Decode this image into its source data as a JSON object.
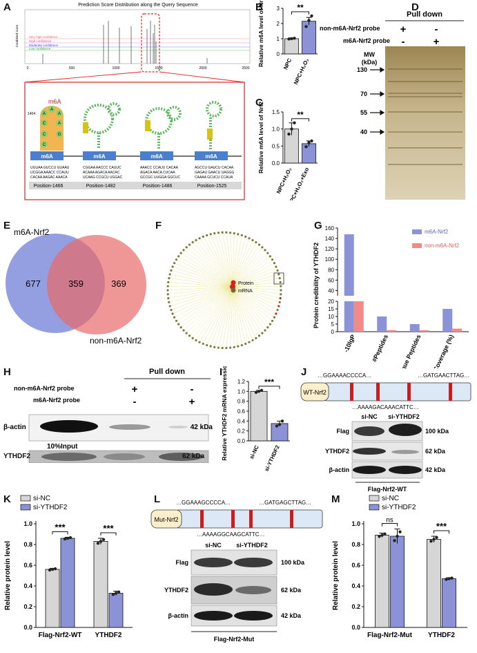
{
  "panel_letters": [
    "A",
    "B",
    "C",
    "D",
    "E",
    "F",
    "G",
    "H",
    "I",
    "J",
    "K",
    "L",
    "M"
  ],
  "colors": {
    "purple": "#8b93d6",
    "grey": "#d6d6d6",
    "pink": "#f28b87",
    "venn_blue": "#6f7fd6",
    "venn_red": "#e86a6a",
    "orange": "#f0a830",
    "green": "#8fd06a",
    "red": "#e03030",
    "yellow": "#e6d96a",
    "wt_box": "#fbefcc",
    "seq_box": "#dce8f6"
  },
  "panelA": {
    "title": "Prediction Score Distribution along the Query Sequence",
    "ylabel": "Combined score",
    "xticks": [
      "0",
      "500",
      "1000",
      "1500",
      "2000",
      "2500"
    ],
    "legend": [
      "Very high confidence",
      "High confidence",
      "Moderate confidence",
      "Low confidence"
    ],
    "m6a_label": "m6A",
    "pos1404": "1404",
    "stem_bases": [
      "A",
      "A",
      "A",
      "C",
      "A",
      "C",
      "G",
      "C"
    ],
    "box_label": "m6A",
    "sites": [
      {
        "seq": [
          "UGUAA GUCCU GUAAU",
          "UCGGA AAACC CCAUU",
          "CACAA AAGAC AAACA"
        ],
        "pos": "Position-1466"
      },
      {
        "seq": [
          "CGGAA AACCC CAUUC",
          "ACAAA AGACA AACAC",
          "UCAAG CCGCU UGGAC"
        ],
        "pos": "Position-1482"
      },
      {
        "seq": [
          "AAACC CCAUU CACAA",
          "AGACA AACA CUCAA",
          "GCCGC UUGGA GGCUC"
        ],
        "pos": "Position-1486"
      },
      {
        "seq": [
          "AGCCU GAUCU CACAA",
          "GAGAU GAACU UAGGG",
          "CAAAA GCUCU CCAUA"
        ],
        "pos": "Position-1525"
      }
    ]
  },
  "chart_data": [
    {
      "id": "B",
      "type": "bar",
      "categories": [
        "NPC",
        "NPC+H2O2"
      ],
      "values": [
        1.0,
        2.15
      ],
      "points": [
        [
          0.98,
          1.0,
          1.03
        ],
        [
          1.8,
          2.2,
          2.5
        ]
      ],
      "errors": [
        0.05,
        0.25
      ],
      "ylabel": "Relative m6A level of Nrf2",
      "ylim": [
        0,
        3
      ],
      "yticks": [
        "0",
        "1",
        "2",
        "3"
      ],
      "significance": "**"
    },
    {
      "id": "C",
      "type": "bar",
      "categories": [
        "NPC+H2O2",
        "NPC+H2O2+Exo"
      ],
      "values": [
        1.0,
        0.57
      ],
      "points": [
        [
          0.85,
          1.0,
          1.18
        ],
        [
          0.48,
          0.6,
          0.65
        ]
      ],
      "errors": [
        0.18,
        0.08
      ],
      "ylabel": "Relative m6A level of Nrf2",
      "ylim": [
        0,
        1.5
      ],
      "yticks": [
        "0.0",
        "0.5",
        "1.0",
        "1.5"
      ],
      "significance": "**"
    },
    {
      "id": "G",
      "type": "bar",
      "title": "",
      "ylabel": "Protein credibility of YTHDF2",
      "categories": [
        "-10lgP",
        "#Peptides",
        "#Unique Peptides",
        "Coverage (%)"
      ],
      "series": [
        {
          "name": "m6A-Nrf2",
          "values": [
            148,
            10,
            5,
            15
          ]
        },
        {
          "name": "non-m6A-Nrf2",
          "values": [
            25,
            1,
            1,
            2
          ]
        }
      ],
      "yticks_low": [
        "0",
        "5",
        "10",
        "15",
        "20"
      ],
      "yticks_high": [
        "40",
        "60",
        "80",
        "100",
        "120",
        "140",
        "160"
      ],
      "axis_break": [
        20,
        30
      ]
    },
    {
      "id": "I",
      "type": "bar",
      "categories": [
        "si-NC",
        "si-YTHDF2"
      ],
      "values": [
        1.0,
        0.35
      ],
      "points": [
        [
          0.98,
          1.0,
          1.02
        ],
        [
          0.3,
          0.33,
          0.4
        ]
      ],
      "errors": [
        0.02,
        0.05
      ],
      "ylabel": "Relative YTHDF2 mRNA expression",
      "ylim": [
        0,
        1.2
      ],
      "yticks": [
        "0.0",
        "0.2",
        "0.4",
        "0.6",
        "0.8",
        "1.0",
        "1.2"
      ],
      "significance": "***"
    },
    {
      "id": "K",
      "type": "bar",
      "categories": [
        "Flag-Nrf2-WT",
        "YTHDF2"
      ],
      "series": [
        {
          "name": "si-NC",
          "values": [
            0.56,
            0.83
          ]
        },
        {
          "name": "si-YTHDF2",
          "values": [
            0.86,
            0.33
          ]
        }
      ],
      "errors": [
        [
          0.01,
          0.03
        ],
        [
          0.01,
          0.02
        ]
      ],
      "ylabel": "Relative protein level",
      "ylim": [
        0,
        1.0
      ],
      "yticks": [
        "0.0",
        "0.2",
        "0.4",
        "0.6",
        "0.8",
        "1.0"
      ],
      "significance": [
        "***",
        "***"
      ]
    },
    {
      "id": "M",
      "type": "bar",
      "categories": [
        "Flag-Nrf2-Mut",
        "YTHDF2"
      ],
      "series": [
        {
          "name": "si-NC",
          "values": [
            0.89,
            0.85
          ]
        },
        {
          "name": "si-YTHDF2",
          "values": [
            0.88,
            0.47
          ]
        }
      ],
      "errors": [
        [
          0.02,
          0.03
        ],
        [
          0.07,
          0.01
        ]
      ],
      "ylabel": "Relative protein level",
      "ylim": [
        0,
        1.0
      ],
      "yticks": [
        "0.0",
        "0.2",
        "0.4",
        "0.6",
        "0.8",
        "1.0"
      ],
      "significance": [
        "ns",
        "***"
      ]
    }
  ],
  "panelD": {
    "title": "Pull down",
    "probe1": "non-m6A-Nrf2 probe",
    "probe2": "m6A-Nrf2 probe",
    "lane1": [
      "+",
      "-"
    ],
    "lane2": [
      "-",
      "+"
    ],
    "mw_label": "MW",
    "mw_unit": "(kDa)",
    "markers": [
      "130",
      "70",
      "55",
      "40"
    ]
  },
  "panelE": {
    "left_label": "m6A-Nrf2",
    "right_label": "non-m6A-Nrf2",
    "left_only": "677",
    "overlap": "359",
    "right_only": "369"
  },
  "panelF": {
    "legend_protein": "Protein",
    "legend_mrna": "mRNA"
  },
  "panelH": {
    "title": "Pull down",
    "probe1": "non-m6A-Nrf2 probe",
    "probe2": "m6A-Nrf2 probe",
    "signs1": [
      "+",
      "-"
    ],
    "signs2": [
      "-",
      "+"
    ],
    "band1": "β-actin",
    "band2": "YTHDF2",
    "input": "10%Input",
    "kda1": "42 kDa",
    "kda2": "62 kDa"
  },
  "panelJ": {
    "construct": "WT-Nrf2",
    "seq_top1": "…GGAAAACCCCA…",
    "seq_top2": "…GATGAACTTAG…",
    "seq_bottom": "…AAAAGACAAACATTC…",
    "lanes": [
      "si-NC",
      "si-YTHDF2"
    ],
    "bands": [
      "Flag",
      "YTHDF2",
      "β-actin"
    ],
    "kda": [
      "100 kDa",
      "62 kDa",
      "42 kDa"
    ],
    "footer": "Flag-Nrf2-WT"
  },
  "panelL": {
    "construct": "Mut-Nrf2",
    "seq_top1": "…GGAAAGCCCCA…",
    "seq_top2": "…GATGAGCTTAG…",
    "seq_bottom": "…AAAAGGCAAGCATTC…",
    "lanes": [
      "si-NC",
      "si-YTHDF2"
    ],
    "bands": [
      "Flag",
      "YTHDF2",
      "β-actin"
    ],
    "kda": [
      "100 kDa",
      "62 kDa",
      "42 kDa"
    ],
    "footer": "Flag-Nrf2-Mut"
  }
}
